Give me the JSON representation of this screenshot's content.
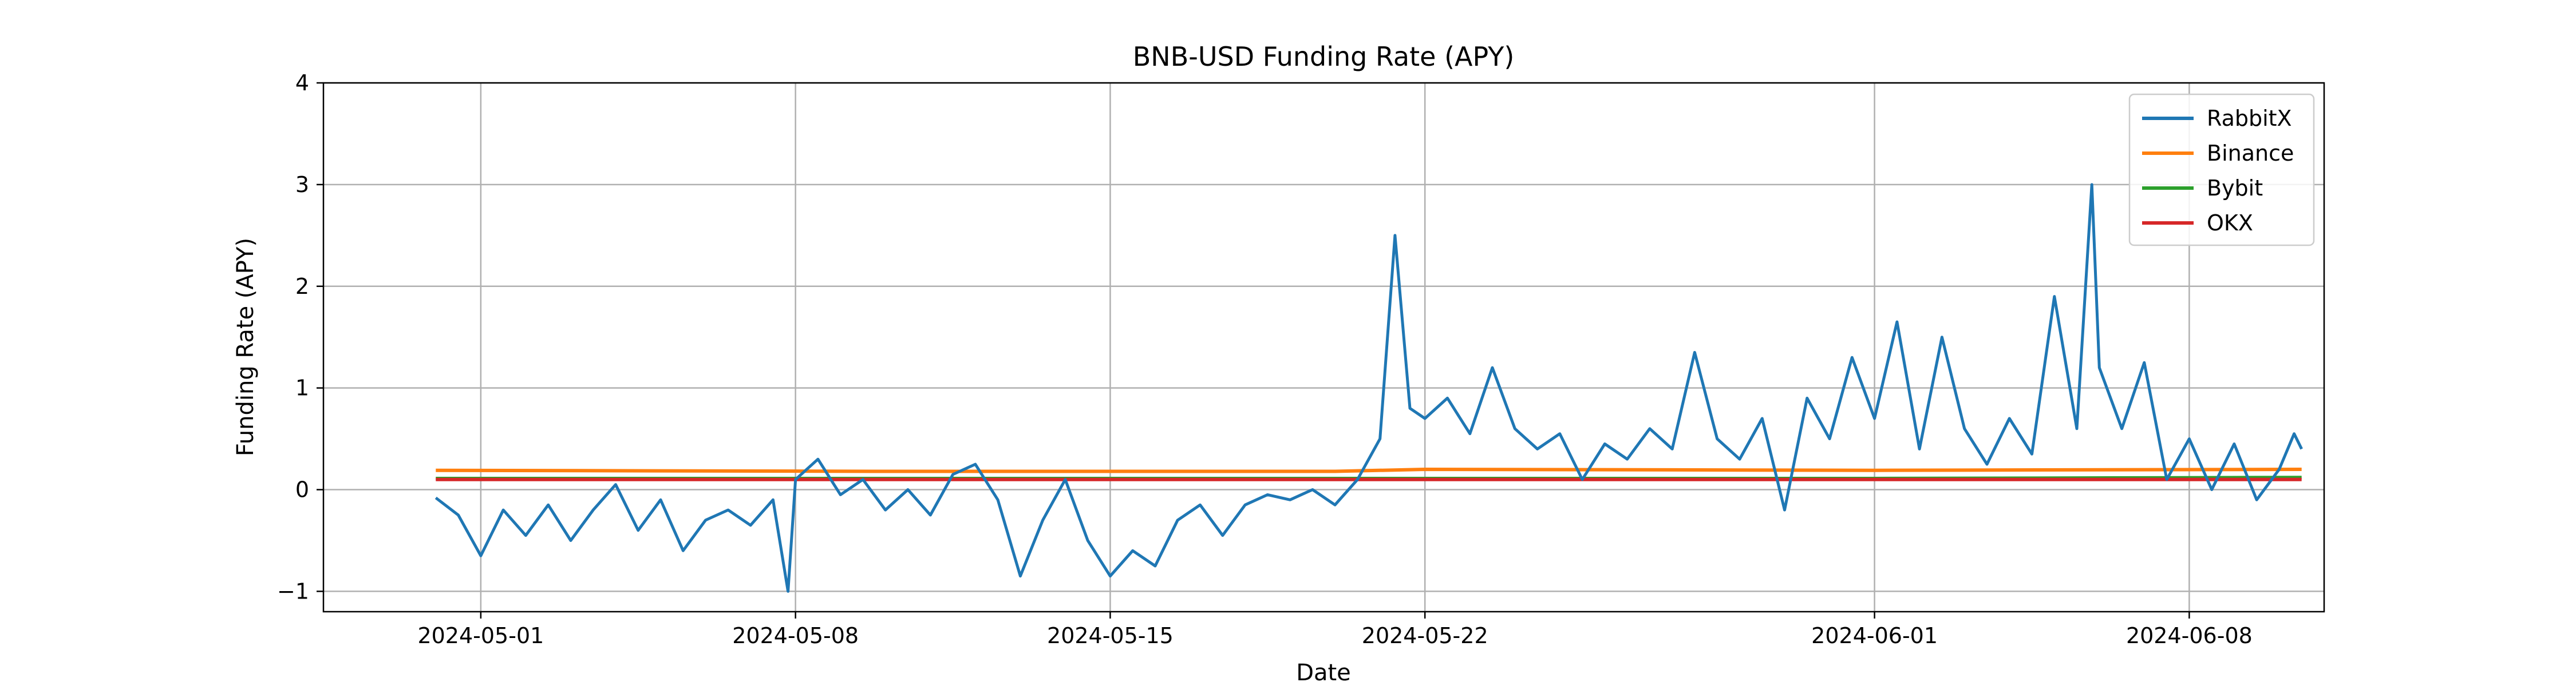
{
  "chart_data": {
    "type": "line",
    "title": "BNB-USD Funding Rate (APY)",
    "xlabel": "Date",
    "ylabel": "Funding Rate (APY)",
    "x_range": [
      "2024-04-27T12:00",
      "2024-06-11T00:00"
    ],
    "ylim": [
      -1.2,
      4.0
    ],
    "y_ticks": [
      -1,
      0,
      1,
      2,
      3,
      4
    ],
    "x_ticks": [
      "2024-05-01",
      "2024-05-08",
      "2024-05-15",
      "2024-05-22",
      "2024-06-01",
      "2024-06-08"
    ],
    "grid": true,
    "legend_position": "top-right",
    "series": [
      {
        "name": "RabbitX",
        "color": "#1f77b4",
        "points": [
          [
            "2024-04-30",
            -0.08
          ],
          [
            "2024-04-30T12:00",
            -0.25
          ],
          [
            "2024-05-01",
            -0.65
          ],
          [
            "2024-05-01T12:00",
            -0.2
          ],
          [
            "2024-05-02",
            -0.45
          ],
          [
            "2024-05-02T12:00",
            -0.15
          ],
          [
            "2024-05-03",
            -0.5
          ],
          [
            "2024-05-03T12:00",
            -0.2
          ],
          [
            "2024-05-04",
            0.05
          ],
          [
            "2024-05-04T12:00",
            -0.4
          ],
          [
            "2024-05-05",
            -0.1
          ],
          [
            "2024-05-05T12:00",
            -0.6
          ],
          [
            "2024-05-06",
            -0.3
          ],
          [
            "2024-05-06T12:00",
            -0.2
          ],
          [
            "2024-05-07",
            -0.35
          ],
          [
            "2024-05-07T12:00",
            -0.1
          ],
          [
            "2024-05-07T20:00",
            -1.0
          ],
          [
            "2024-05-08",
            0.1
          ],
          [
            "2024-05-08T12:00",
            0.3
          ],
          [
            "2024-05-09",
            -0.05
          ],
          [
            "2024-05-09T12:00",
            0.1
          ],
          [
            "2024-05-10",
            -0.2
          ],
          [
            "2024-05-10T12:00",
            0.0
          ],
          [
            "2024-05-11",
            -0.25
          ],
          [
            "2024-05-11T12:00",
            0.15
          ],
          [
            "2024-05-12",
            0.25
          ],
          [
            "2024-05-12T12:00",
            -0.1
          ],
          [
            "2024-05-13",
            -0.85
          ],
          [
            "2024-05-13T12:00",
            -0.3
          ],
          [
            "2024-05-14",
            0.1
          ],
          [
            "2024-05-14T12:00",
            -0.5
          ],
          [
            "2024-05-15",
            -0.85
          ],
          [
            "2024-05-15T12:00",
            -0.6
          ],
          [
            "2024-05-16",
            -0.75
          ],
          [
            "2024-05-16T12:00",
            -0.3
          ],
          [
            "2024-05-17",
            -0.15
          ],
          [
            "2024-05-17T12:00",
            -0.45
          ],
          [
            "2024-05-18",
            -0.15
          ],
          [
            "2024-05-18T12:00",
            -0.05
          ],
          [
            "2024-05-19",
            -0.1
          ],
          [
            "2024-05-19T12:00",
            0.0
          ],
          [
            "2024-05-20",
            -0.15
          ],
          [
            "2024-05-20T12:00",
            0.1
          ],
          [
            "2024-05-21",
            0.5
          ],
          [
            "2024-05-21T08:00",
            2.5
          ],
          [
            "2024-05-21T16:00",
            0.8
          ],
          [
            "2024-05-22",
            0.7
          ],
          [
            "2024-05-22T12:00",
            0.9
          ],
          [
            "2024-05-23",
            0.55
          ],
          [
            "2024-05-23T12:00",
            1.2
          ],
          [
            "2024-05-24",
            0.6
          ],
          [
            "2024-05-24T12:00",
            0.4
          ],
          [
            "2024-05-25",
            0.55
          ],
          [
            "2024-05-25T12:00",
            0.1
          ],
          [
            "2024-05-26",
            0.45
          ],
          [
            "2024-05-26T12:00",
            0.3
          ],
          [
            "2024-05-27",
            0.6
          ],
          [
            "2024-05-27T12:00",
            0.4
          ],
          [
            "2024-05-28",
            1.35
          ],
          [
            "2024-05-28T12:00",
            0.5
          ],
          [
            "2024-05-29",
            0.3
          ],
          [
            "2024-05-29T12:00",
            0.7
          ],
          [
            "2024-05-30",
            -0.2
          ],
          [
            "2024-05-30T12:00",
            0.9
          ],
          [
            "2024-05-31",
            0.5
          ],
          [
            "2024-05-31T12:00",
            1.3
          ],
          [
            "2024-06-01",
            0.7
          ],
          [
            "2024-06-01T12:00",
            1.65
          ],
          [
            "2024-06-02",
            0.4
          ],
          [
            "2024-06-02T12:00",
            1.5
          ],
          [
            "2024-06-03",
            0.6
          ],
          [
            "2024-06-03T12:00",
            0.25
          ],
          [
            "2024-06-04",
            0.7
          ],
          [
            "2024-06-04T12:00",
            0.35
          ],
          [
            "2024-06-05",
            1.9
          ],
          [
            "2024-06-05T12:00",
            0.6
          ],
          [
            "2024-06-05T20:00",
            3.0
          ],
          [
            "2024-06-06",
            1.2
          ],
          [
            "2024-06-06T12:00",
            0.6
          ],
          [
            "2024-06-07",
            1.25
          ],
          [
            "2024-06-07T12:00",
            0.1
          ],
          [
            "2024-06-08",
            0.5
          ],
          [
            "2024-06-08T12:00",
            0.0
          ],
          [
            "2024-06-09",
            0.45
          ],
          [
            "2024-06-09T12:00",
            -0.1
          ],
          [
            "2024-06-10",
            0.2
          ],
          [
            "2024-06-10T08:00",
            0.55
          ],
          [
            "2024-06-10T12:00",
            0.4
          ]
        ]
      },
      {
        "name": "Binance",
        "color": "#ff7f0e",
        "points": [
          [
            "2024-04-30",
            0.19
          ],
          [
            "2024-05-10",
            0.18
          ],
          [
            "2024-05-20",
            0.18
          ],
          [
            "2024-05-22",
            0.2
          ],
          [
            "2024-06-01",
            0.19
          ],
          [
            "2024-06-10T12:00",
            0.2
          ]
        ]
      },
      {
        "name": "Bybit",
        "color": "#2ca02c",
        "points": [
          [
            "2024-04-30",
            0.11
          ],
          [
            "2024-05-10",
            0.11
          ],
          [
            "2024-05-20",
            0.11
          ],
          [
            "2024-06-01",
            0.11
          ],
          [
            "2024-06-10T12:00",
            0.12
          ]
        ]
      },
      {
        "name": "OKX",
        "color": "#d62728",
        "points": [
          [
            "2024-04-30",
            0.1
          ],
          [
            "2024-05-10",
            0.1
          ],
          [
            "2024-05-20",
            0.1
          ],
          [
            "2024-06-01",
            0.1
          ],
          [
            "2024-06-10T12:00",
            0.1
          ]
        ]
      }
    ]
  }
}
